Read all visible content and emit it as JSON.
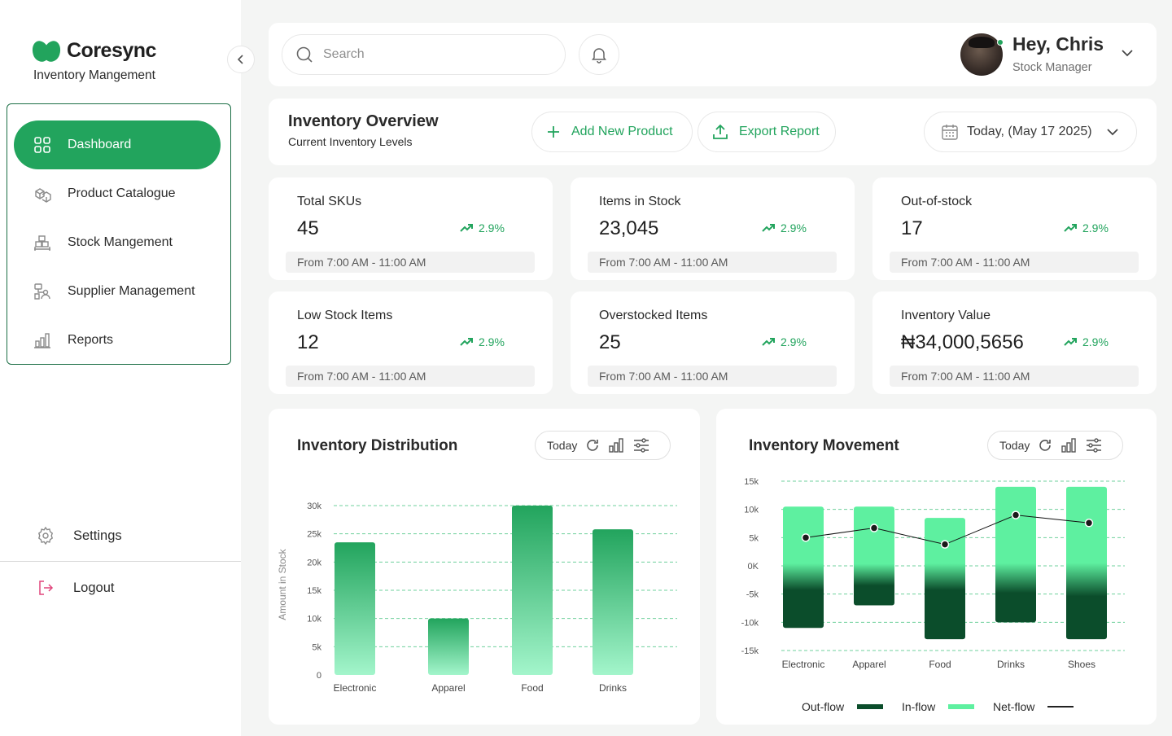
{
  "brand": {
    "name": "Coresync",
    "subtitle": "Inventory Mangement"
  },
  "nav": {
    "items": [
      {
        "label": "Dashboard",
        "icon": "grid-icon",
        "active": true
      },
      {
        "label": "Product Catalogue",
        "icon": "boxes-icon",
        "active": false
      },
      {
        "label": "Stock Mangement",
        "icon": "warehouse-icon",
        "active": false
      },
      {
        "label": "Supplier Management",
        "icon": "supplier-icon",
        "active": false
      },
      {
        "label": "Reports",
        "icon": "bar-chart-icon",
        "active": false
      }
    ],
    "settings_label": "Settings",
    "logout_label": "Logout"
  },
  "topbar": {
    "search_placeholder": "Search",
    "user_greeting": "Hey, Chris",
    "user_role": "Stock Manager"
  },
  "overview": {
    "title": "Inventory Overview",
    "subtitle": "Current Inventory Levels",
    "add_product_label": "Add New Product",
    "export_label": "Export Report",
    "date_label": "Today, (May 17 2025)"
  },
  "kpis": [
    {
      "label": "Total SKUs",
      "value": "45",
      "trend": "2.9%",
      "range": "From 7:00 AM - 11:00 AM"
    },
    {
      "label": "Items in Stock",
      "value": "23,045",
      "trend": "2.9%",
      "range": "From 7:00 AM - 11:00 AM"
    },
    {
      "label": "Out-of-stock",
      "value": "17",
      "trend": "2.9%",
      "range": "From 7:00 AM - 11:00 AM"
    },
    {
      "label": "Low Stock Items",
      "value": "12",
      "trend": "2.9%",
      "range": "From 7:00 AM - 11:00 AM"
    },
    {
      "label": "Overstocked Items",
      "value": "25",
      "trend": "2.9%",
      "range": "From 7:00 AM - 11:00 AM"
    },
    {
      "label": "Inventory Value",
      "value": "₦34,000,5656",
      "trend": "2.9%",
      "range": "From 7:00 AM - 11:00 AM"
    }
  ],
  "distribution": {
    "title": "Inventory Distribution",
    "period_label": "Today"
  },
  "movement": {
    "title": "Inventory Movement",
    "period_label": "Today",
    "legend": {
      "outflow": "Out-flow",
      "inflow": "In-flow",
      "netflow": "Net-flow"
    }
  },
  "colors": {
    "accent": "#22a45d",
    "inflow": "#5ef0a0",
    "outflow": "#0b4d2b",
    "bar_top": "#22a45d",
    "bar_bottom": "#a3f5cb"
  },
  "chart_data": [
    {
      "type": "bar",
      "title": "Inventory Distribution",
      "ylabel": "Amount in Stock",
      "xlabel": "",
      "categories": [
        "Electronic",
        "Apparel",
        "Food",
        "Drinks"
      ],
      "values": [
        23500,
        10000,
        30000,
        25800
      ],
      "ylim": [
        0,
        30000
      ],
      "yticks": [
        0,
        5000,
        10000,
        15000,
        20000,
        25000,
        30000
      ],
      "ytick_labels": [
        "0",
        "5k",
        "10k",
        "15k",
        "20k",
        "25k",
        "30k"
      ],
      "grid": true
    },
    {
      "type": "bar",
      "title": "Inventory Movement",
      "categories": [
        "Electronic",
        "Apparel",
        "Food",
        "Drinks",
        "Shoes"
      ],
      "series": [
        {
          "name": "In-flow",
          "values": [
            10500,
            10500,
            8500,
            14000,
            14000
          ]
        },
        {
          "name": "Out-flow",
          "values": [
            -11000,
            -7000,
            -13000,
            -10000,
            -13000
          ]
        },
        {
          "name": "Net-flow",
          "values": [
            5000,
            6700,
            3800,
            9000,
            7600
          ]
        }
      ],
      "ylim": [
        -15000,
        15000
      ],
      "yticks": [
        -15000,
        -10000,
        -5000,
        0,
        5000,
        10000,
        15000
      ],
      "ytick_labels": [
        "-15k",
        "-10k",
        "-5k",
        "0K",
        "5k",
        "10k",
        "15k"
      ],
      "grid": true,
      "legend_position": "bottom"
    }
  ]
}
